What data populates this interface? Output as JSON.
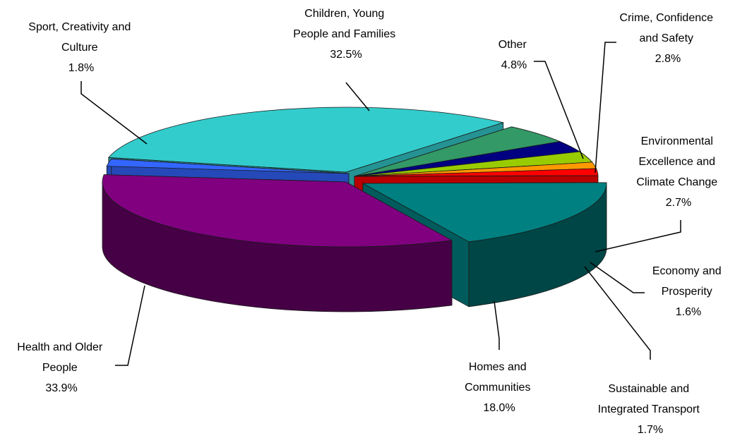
{
  "chart_data": {
    "type": "pie",
    "title": "",
    "slices": [
      {
        "key": "children",
        "lines": [
          "Children, Young",
          "People and Families"
        ],
        "value_label": "32.5%",
        "value": 32.5,
        "color": "#33CCCC"
      },
      {
        "key": "other",
        "lines": [
          "Other"
        ],
        "value_label": "4.8%",
        "value": 4.8,
        "color": "#339966"
      },
      {
        "key": "crime",
        "lines": [
          "Crime, Confidence",
          "and Safety"
        ],
        "value_label": "2.8%",
        "value": 2.8,
        "color": "#000080"
      },
      {
        "key": "environment",
        "lines": [
          "Environmental",
          "Excellence and",
          "Climate Change"
        ],
        "value_label": "2.7%",
        "value": 2.7,
        "color": "#99CC00"
      },
      {
        "key": "economy",
        "lines": [
          "Economy and",
          "Prosperity"
        ],
        "value_label": "1.6%",
        "value": 1.6,
        "color": "#FF9900"
      },
      {
        "key": "transport",
        "lines": [
          "Sustainable and",
          "Integrated Transport"
        ],
        "value_label": "1.7%",
        "value": 1.7,
        "color": "#FF0000"
      },
      {
        "key": "homes",
        "lines": [
          "Homes and",
          "Communities"
        ],
        "value_label": "18.0%",
        "value": 18.0,
        "color": "#008080"
      },
      {
        "key": "health",
        "lines": [
          "Health and Older",
          "People"
        ],
        "value_label": "33.9%",
        "value": 33.9,
        "color": "#800080"
      },
      {
        "key": "sport",
        "lines": [
          "Sport, Creativity and",
          "Culture"
        ],
        "value_label": "1.8%",
        "value": 1.8,
        "color": "#3366FF"
      }
    ]
  }
}
